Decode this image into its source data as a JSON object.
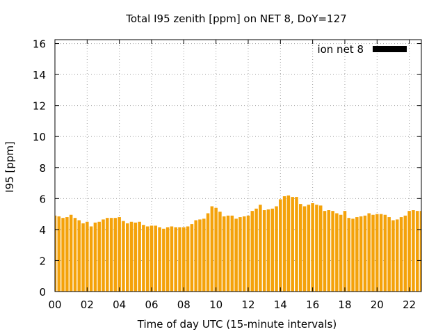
{
  "chart_data": {
    "type": "bar",
    "title": "Total I95 zenith [ppm] on NET 8, DoY=127",
    "xlabel": "Time of day UTC (15-minute intervals)",
    "ylabel": "I95 [ppm]",
    "xlim": [
      0,
      22.75
    ],
    "ylim": [
      0,
      16.25
    ],
    "x_ticks": [
      "00",
      "02",
      "04",
      "06",
      "08",
      "10",
      "12",
      "14",
      "16",
      "18",
      "20",
      "22"
    ],
    "y_ticks": [
      "0",
      "2",
      "4",
      "6",
      "8",
      "10",
      "12",
      "14",
      "16"
    ],
    "grid": true,
    "legend_position": "top-right",
    "bar_color": "#f4a20a",
    "legend_swatch_color": "#000000",
    "series": [
      {
        "name": "ion net 8",
        "interval_hours": 0.25,
        "values": [
          4.9,
          4.85,
          4.75,
          4.8,
          4.95,
          4.75,
          4.6,
          4.4,
          4.5,
          4.2,
          4.45,
          4.5,
          4.65,
          4.75,
          4.75,
          4.75,
          4.8,
          4.55,
          4.4,
          4.5,
          4.45,
          4.5,
          4.3,
          4.2,
          4.25,
          4.25,
          4.15,
          4.05,
          4.15,
          4.2,
          4.15,
          4.15,
          4.15,
          4.2,
          4.35,
          4.6,
          4.65,
          4.7,
          5.05,
          5.5,
          5.4,
          5.15,
          4.85,
          4.9,
          4.9,
          4.7,
          4.8,
          4.85,
          4.9,
          5.2,
          5.35,
          5.6,
          5.25,
          5.3,
          5.35,
          5.5,
          5.95,
          6.15,
          6.2,
          6.1,
          6.1,
          5.65,
          5.5,
          5.6,
          5.7,
          5.6,
          5.55,
          5.2,
          5.25,
          5.2,
          5.05,
          4.95,
          5.2,
          4.75,
          4.7,
          4.8,
          4.85,
          4.9,
          5.05,
          4.95,
          5.0,
          5.0,
          4.95,
          4.8,
          4.6,
          4.65,
          4.8,
          4.9,
          5.2,
          5.25,
          5.2,
          5.2
        ]
      }
    ]
  }
}
